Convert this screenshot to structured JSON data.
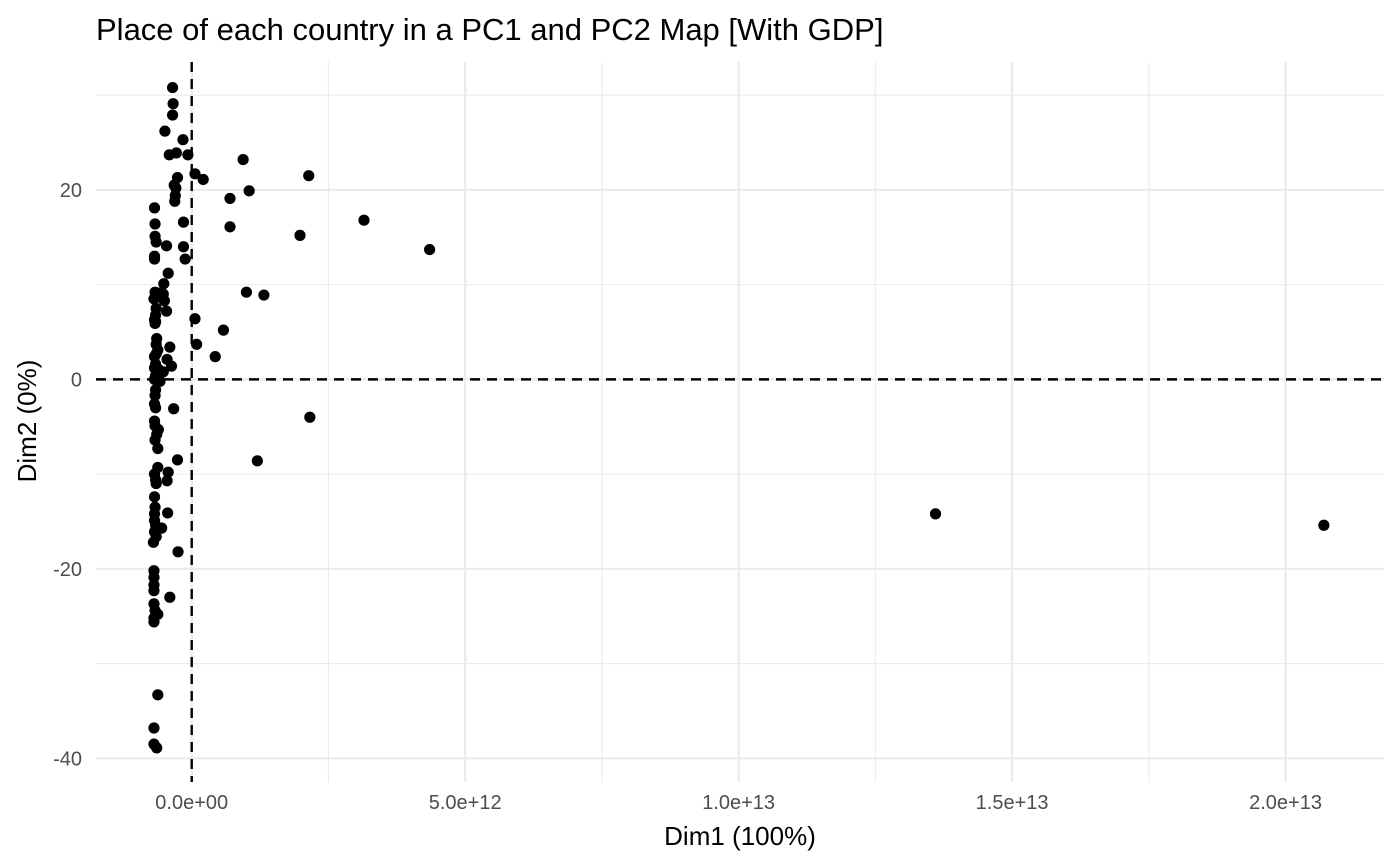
{
  "chart_data": {
    "type": "scatter",
    "title": "Place of each country in a PC1 and PC2 Map [With GDP]",
    "xlabel": "Dim1 (100%)",
    "ylabel": "Dim2 (0%)",
    "xlim": [
      -1750000000000.0,
      21800000000000.0
    ],
    "ylim": [
      -42.5,
      33.5
    ],
    "x_ticks": [
      0,
      5000000000000.0,
      10000000000000.0,
      15000000000000.0,
      20000000000000.0
    ],
    "x_tick_labels": [
      "0.0e+00",
      "5.0e+12",
      "1.0e+13",
      "1.5e+13",
      "2.0e+13"
    ],
    "y_ticks": [
      -40,
      -20,
      0,
      20
    ],
    "y_tick_labels": [
      "-40",
      "-20",
      "0",
      "20"
    ],
    "reference_lines": {
      "x": 0,
      "y": 0,
      "style": "dashed"
    },
    "grid": true,
    "theme": "minimal",
    "point_color": "#000000",
    "points": [
      {
        "x": -350000000000.0,
        "y": 30.8
      },
      {
        "x": -340000000000.0,
        "y": 29.1
      },
      {
        "x": -350000000000.0,
        "y": 27.9
      },
      {
        "x": -490000000000.0,
        "y": 26.2
      },
      {
        "x": -160000000000.0,
        "y": 25.3
      },
      {
        "x": -410000000000.0,
        "y": 23.7
      },
      {
        "x": -280000000000.0,
        "y": 23.9
      },
      {
        "x": -70000000000.0,
        "y": 23.7
      },
      {
        "x": 940000000000.0,
        "y": 23.2
      },
      {
        "x": 2140000000000.0,
        "y": 21.5
      },
      {
        "x": 60000000000.0,
        "y": 21.7
      },
      {
        "x": 210000000000.0,
        "y": 21.1
      },
      {
        "x": -260000000000.0,
        "y": 21.3
      },
      {
        "x": -320000000000.0,
        "y": 20.5
      },
      {
        "x": -290000000000.0,
        "y": 20.2
      },
      {
        "x": 1050000000000.0,
        "y": 19.9
      },
      {
        "x": -300000000000.0,
        "y": 19.4
      },
      {
        "x": -310000000000.0,
        "y": 18.8
      },
      {
        "x": 700000000000.0,
        "y": 19.1
      },
      {
        "x": -680000000000.0,
        "y": 18.1
      },
      {
        "x": 3150000000000.0,
        "y": 16.8
      },
      {
        "x": -150000000000.0,
        "y": 16.6
      },
      {
        "x": -670000000000.0,
        "y": 16.4
      },
      {
        "x": 700000000000.0,
        "y": 16.1
      },
      {
        "x": 1980000000000.0,
        "y": 15.2
      },
      {
        "x": -670000000000.0,
        "y": 15.1
      },
      {
        "x": -650000000000.0,
        "y": 14.5
      },
      {
        "x": -460000000000.0,
        "y": 14.1
      },
      {
        "x": -150000000000.0,
        "y": 14.0
      },
      {
        "x": 4350000000000.0,
        "y": 13.7
      },
      {
        "x": -680000000000.0,
        "y": 13.0
      },
      {
        "x": -680000000000.0,
        "y": 12.7
      },
      {
        "x": -120000000000.0,
        "y": 12.7
      },
      {
        "x": -430000000000.0,
        "y": 11.2
      },
      {
        "x": -510000000000.0,
        "y": 10.1
      },
      {
        "x": -670000000000.0,
        "y": 9.2
      },
      {
        "x": -600000000000.0,
        "y": 9.1
      },
      {
        "x": -520000000000.0,
        "y": 9.0
      },
      {
        "x": 1000000000000.0,
        "y": 9.2
      },
      {
        "x": 1320000000000.0,
        "y": 8.9
      },
      {
        "x": -690000000000.0,
        "y": 8.5
      },
      {
        "x": -630000000000.0,
        "y": 8.7
      },
      {
        "x": -500000000000.0,
        "y": 8.3
      },
      {
        "x": -650000000000.0,
        "y": 7.5
      },
      {
        "x": -460000000000.0,
        "y": 7.2
      },
      {
        "x": -660000000000.0,
        "y": 6.8
      },
      {
        "x": -680000000000.0,
        "y": 6.3
      },
      {
        "x": -660000000000.0,
        "y": 6.1
      },
      {
        "x": -670000000000.0,
        "y": 5.9
      },
      {
        "x": 60000000000.0,
        "y": 6.4
      },
      {
        "x": 580000000000.0,
        "y": 5.2
      },
      {
        "x": -640000000000.0,
        "y": 4.3
      },
      {
        "x": -650000000000.0,
        "y": 3.7
      },
      {
        "x": 90000000000.0,
        "y": 3.7
      },
      {
        "x": -400000000000.0,
        "y": 3.4
      },
      {
        "x": -620000000000.0,
        "y": 3.1
      },
      {
        "x": -650000000000.0,
        "y": 2.7
      },
      {
        "x": -680000000000.0,
        "y": 2.4
      },
      {
        "x": -450000000000.0,
        "y": 2.1
      },
      {
        "x": 430000000000.0,
        "y": 2.4
      },
      {
        "x": -660000000000.0,
        "y": 1.6
      },
      {
        "x": -370000000000.0,
        "y": 1.4
      },
      {
        "x": -680000000000.0,
        "y": 1.2
      },
      {
        "x": -600000000000.0,
        "y": 1.0
      },
      {
        "x": -520000000000.0,
        "y": 0.8
      },
      {
        "x": -660000000000.0,
        "y": 0.4
      },
      {
        "x": -680000000000.0,
        "y": 0.0
      },
      {
        "x": -580000000000.0,
        "y": -0.2
      },
      {
        "x": -660000000000.0,
        "y": -1.1
      },
      {
        "x": -670000000000.0,
        "y": -1.7
      },
      {
        "x": -680000000000.0,
        "y": -2.6
      },
      {
        "x": -660000000000.0,
        "y": -3.0
      },
      {
        "x": -330000000000.0,
        "y": -3.1
      },
      {
        "x": 2160000000000.0,
        "y": -4.0
      },
      {
        "x": -680000000000.0,
        "y": -4.4
      },
      {
        "x": -670000000000.0,
        "y": -4.9
      },
      {
        "x": -610000000000.0,
        "y": -5.3
      },
      {
        "x": -640000000000.0,
        "y": -5.8
      },
      {
        "x": -670000000000.0,
        "y": -6.4
      },
      {
        "x": -620000000000.0,
        "y": -7.3
      },
      {
        "x": -260000000000.0,
        "y": -8.5
      },
      {
        "x": 1200000000000.0,
        "y": -8.6
      },
      {
        "x": -620000000000.0,
        "y": -9.3
      },
      {
        "x": -430000000000.0,
        "y": -9.8
      },
      {
        "x": -680000000000.0,
        "y": -10.0
      },
      {
        "x": -660000000000.0,
        "y": -10.6
      },
      {
        "x": -450000000000.0,
        "y": -10.7
      },
      {
        "x": -650000000000.0,
        "y": -11.0
      },
      {
        "x": -680000000000.0,
        "y": -12.4
      },
      {
        "x": -670000000000.0,
        "y": -13.5
      },
      {
        "x": -680000000000.0,
        "y": -14.2
      },
      {
        "x": -440000000000.0,
        "y": -14.1
      },
      {
        "x": 13600000000000.0,
        "y": -14.2
      },
      {
        "x": -680000000000.0,
        "y": -14.9
      },
      {
        "x": -660000000000.0,
        "y": -15.4
      },
      {
        "x": -550000000000.0,
        "y": -15.7
      },
      {
        "x": -680000000000.0,
        "y": -16.1
      },
      {
        "x": -650000000000.0,
        "y": -16.6
      },
      {
        "x": 20700000000000.0,
        "y": -15.4
      },
      {
        "x": -700000000000.0,
        "y": -17.2
      },
      {
        "x": -250000000000.0,
        "y": -18.2
      },
      {
        "x": -690000000000.0,
        "y": -20.2
      },
      {
        "x": -690000000000.0,
        "y": -20.9
      },
      {
        "x": -690000000000.0,
        "y": -21.7
      },
      {
        "x": -690000000000.0,
        "y": -22.3
      },
      {
        "x": -400000000000.0,
        "y": -23.0
      },
      {
        "x": -690000000000.0,
        "y": -23.7
      },
      {
        "x": -670000000000.0,
        "y": -24.4
      },
      {
        "x": -620000000000.0,
        "y": -24.8
      },
      {
        "x": -690000000000.0,
        "y": -25.2
      },
      {
        "x": -690000000000.0,
        "y": -25.6
      },
      {
        "x": -620000000000.0,
        "y": -33.3
      },
      {
        "x": -690000000000.0,
        "y": -36.8
      },
      {
        "x": -690000000000.0,
        "y": -38.5
      },
      {
        "x": -640000000000.0,
        "y": -38.9
      }
    ]
  }
}
